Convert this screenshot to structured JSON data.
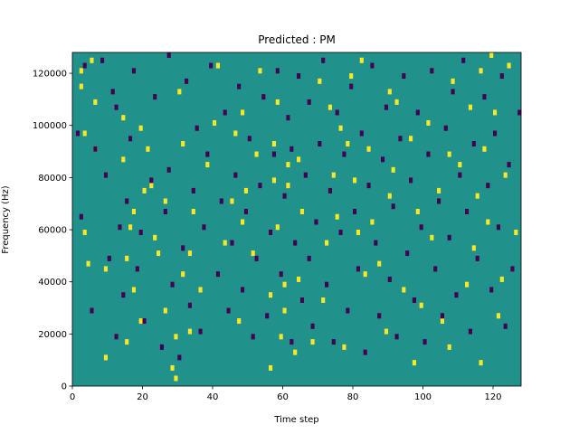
{
  "chart_data": {
    "type": "heatmap",
    "title": "Predicted : PM",
    "xlabel": "Time step",
    "ylabel": "Frequency (Hz)",
    "xlim": [
      0,
      128
    ],
    "ylim": [
      0,
      128000
    ],
    "x_ticks": [
      0,
      20,
      40,
      60,
      80,
      100,
      120
    ],
    "y_ticks": [
      0,
      20000,
      40000,
      60000,
      80000,
      100000,
      120000
    ],
    "n_time_steps": 128,
    "n_freq_bins": 64,
    "bin_height_hz": 2000,
    "colormap": {
      "background": "#21918c",
      "high": "#fde725",
      "low": "#440154"
    },
    "grid": false,
    "cells": {
      "high": [
        [
          2,
          57
        ],
        [
          2,
          60
        ],
        [
          3,
          29
        ],
        [
          3,
          48
        ],
        [
          4,
          23
        ],
        [
          5,
          62
        ],
        [
          6,
          45
        ],
        [
          6,
          54
        ],
        [
          9,
          5
        ],
        [
          9,
          22
        ],
        [
          14,
          43
        ],
        [
          14,
          51
        ],
        [
          15,
          8
        ],
        [
          15,
          24
        ],
        [
          16,
          30
        ],
        [
          17,
          18
        ],
        [
          17,
          33
        ],
        [
          19,
          12
        ],
        [
          19,
          49
        ],
        [
          20,
          37
        ],
        [
          21,
          45
        ],
        [
          22,
          38
        ],
        [
          23,
          28
        ],
        [
          24,
          25
        ],
        [
          26,
          14
        ],
        [
          26,
          35
        ],
        [
          28,
          3
        ],
        [
          29,
          1
        ],
        [
          29,
          9
        ],
        [
          30,
          56
        ],
        [
          31,
          46
        ],
        [
          31,
          21
        ],
        [
          33,
          10
        ],
        [
          33,
          25
        ],
        [
          34,
          33
        ],
        [
          36,
          18
        ],
        [
          38,
          42
        ],
        [
          40,
          50
        ],
        [
          41,
          61
        ],
        [
          43,
          27
        ],
        [
          45,
          35
        ],
        [
          46,
          48
        ],
        [
          47,
          12
        ],
        [
          48,
          31
        ],
        [
          48,
          52
        ],
        [
          49,
          37
        ],
        [
          51,
          25
        ],
        [
          52,
          44
        ],
        [
          53,
          60
        ],
        [
          56,
          3
        ],
        [
          56,
          17
        ],
        [
          57,
          39
        ],
        [
          57,
          46
        ],
        [
          58,
          30
        ],
        [
          58,
          54
        ],
        [
          59,
          9
        ],
        [
          60,
          14
        ],
        [
          60,
          19
        ],
        [
          61,
          38
        ],
        [
          61,
          42
        ],
        [
          63,
          6
        ],
        [
          64,
          20
        ],
        [
          64,
          43
        ],
        [
          65,
          33
        ],
        [
          68,
          8
        ],
        [
          70,
          58
        ],
        [
          71,
          16
        ],
        [
          72,
          27
        ],
        [
          73,
          53
        ],
        [
          74,
          40
        ],
        [
          75,
          32
        ],
        [
          76,
          49
        ],
        [
          77,
          7
        ],
        [
          78,
          46
        ],
        [
          79,
          59
        ],
        [
          80,
          39
        ],
        [
          81,
          29
        ],
        [
          82,
          62
        ],
        [
          83,
          21
        ],
        [
          84,
          45
        ],
        [
          85,
          31
        ],
        [
          87,
          23
        ],
        [
          89,
          10
        ],
        [
          90,
          36
        ],
        [
          90,
          56
        ],
        [
          91,
          41
        ],
        [
          92,
          54
        ],
        [
          94,
          18
        ],
        [
          96,
          47
        ],
        [
          97,
          4
        ],
        [
          98,
          33
        ],
        [
          99,
          15
        ],
        [
          101,
          50
        ],
        [
          102,
          28
        ],
        [
          104,
          37
        ],
        [
          105,
          12
        ],
        [
          107,
          7
        ],
        [
          107,
          44
        ],
        [
          108,
          58
        ],
        [
          110,
          42
        ],
        [
          112,
          19
        ],
        [
          113,
          53
        ],
        [
          114,
          26
        ],
        [
          115,
          36
        ],
        [
          116,
          4
        ],
        [
          116,
          60
        ],
        [
          117,
          45
        ],
        [
          118,
          31
        ],
        [
          119,
          63
        ],
        [
          120,
          52
        ],
        [
          121,
          13
        ],
        [
          122,
          20
        ],
        [
          123,
          40
        ],
        [
          124,
          61
        ],
        [
          126,
          29
        ]
      ],
      "low": [
        [
          1,
          48
        ],
        [
          2,
          32
        ],
        [
          3,
          61
        ],
        [
          5,
          14
        ],
        [
          6,
          45
        ],
        [
          8,
          62
        ],
        [
          9,
          40
        ],
        [
          10,
          24
        ],
        [
          11,
          56
        ],
        [
          12,
          9
        ],
        [
          12,
          53
        ],
        [
          13,
          30
        ],
        [
          14,
          17
        ],
        [
          15,
          35
        ],
        [
          16,
          47
        ],
        [
          17,
          60
        ],
        [
          18,
          22
        ],
        [
          19,
          29
        ],
        [
          20,
          12
        ],
        [
          22,
          39
        ],
        [
          23,
          55
        ],
        [
          25,
          7
        ],
        [
          26,
          33
        ],
        [
          27,
          41
        ],
        [
          27,
          63
        ],
        [
          28,
          19
        ],
        [
          30,
          5
        ],
        [
          31,
          26
        ],
        [
          32,
          58
        ],
        [
          33,
          15
        ],
        [
          34,
          37
        ],
        [
          35,
          49
        ],
        [
          36,
          10
        ],
        [
          37,
          30
        ],
        [
          38,
          44
        ],
        [
          39,
          61
        ],
        [
          41,
          21
        ],
        [
          42,
          35
        ],
        [
          43,
          52
        ],
        [
          44,
          14
        ],
        [
          45,
          27
        ],
        [
          46,
          40
        ],
        [
          47,
          57
        ],
        [
          48,
          18
        ],
        [
          49,
          33
        ],
        [
          50,
          47
        ],
        [
          51,
          9
        ],
        [
          52,
          24
        ],
        [
          53,
          38
        ],
        [
          54,
          55
        ],
        [
          55,
          13
        ],
        [
          56,
          29
        ],
        [
          57,
          44
        ],
        [
          58,
          60
        ],
        [
          59,
          21
        ],
        [
          60,
          36
        ],
        [
          61,
          51
        ],
        [
          62,
          8
        ],
        [
          62,
          45
        ],
        [
          63,
          27
        ],
        [
          64,
          59
        ],
        [
          65,
          16
        ],
        [
          66,
          40
        ],
        [
          67,
          24
        ],
        [
          67,
          54
        ],
        [
          68,
          11
        ],
        [
          69,
          31
        ],
        [
          70,
          46
        ],
        [
          71,
          62
        ],
        [
          72,
          19
        ],
        [
          73,
          37
        ],
        [
          74,
          8
        ],
        [
          75,
          52
        ],
        [
          76,
          29
        ],
        [
          77,
          44
        ],
        [
          78,
          14
        ],
        [
          79,
          57
        ],
        [
          80,
          33
        ],
        [
          81,
          22
        ],
        [
          82,
          48
        ],
        [
          83,
          6
        ],
        [
          84,
          38
        ],
        [
          85,
          61
        ],
        [
          86,
          27
        ],
        [
          87,
          13
        ],
        [
          88,
          43
        ],
        [
          89,
          53
        ],
        [
          90,
          20
        ],
        [
          91,
          34
        ],
        [
          92,
          9
        ],
        [
          93,
          47
        ],
        [
          94,
          59
        ],
        [
          95,
          25
        ],
        [
          96,
          39
        ],
        [
          97,
          16
        ],
        [
          98,
          52
        ],
        [
          99,
          30
        ],
        [
          100,
          8
        ],
        [
          101,
          44
        ],
        [
          102,
          60
        ],
        [
          103,
          22
        ],
        [
          104,
          35
        ],
        [
          105,
          13
        ],
        [
          106,
          49
        ],
        [
          107,
          28
        ],
        [
          108,
          56
        ],
        [
          109,
          17
        ],
        [
          110,
          40
        ],
        [
          111,
          62
        ],
        [
          112,
          33
        ],
        [
          113,
          10
        ],
        [
          114,
          46
        ],
        [
          115,
          24
        ],
        [
          117,
          55
        ],
        [
          118,
          38
        ],
        [
          119,
          18
        ],
        [
          120,
          48
        ],
        [
          121,
          30
        ],
        [
          122,
          59
        ],
        [
          123,
          11
        ],
        [
          124,
          42
        ],
        [
          125,
          22
        ],
        [
          127,
          52
        ]
      ]
    }
  }
}
